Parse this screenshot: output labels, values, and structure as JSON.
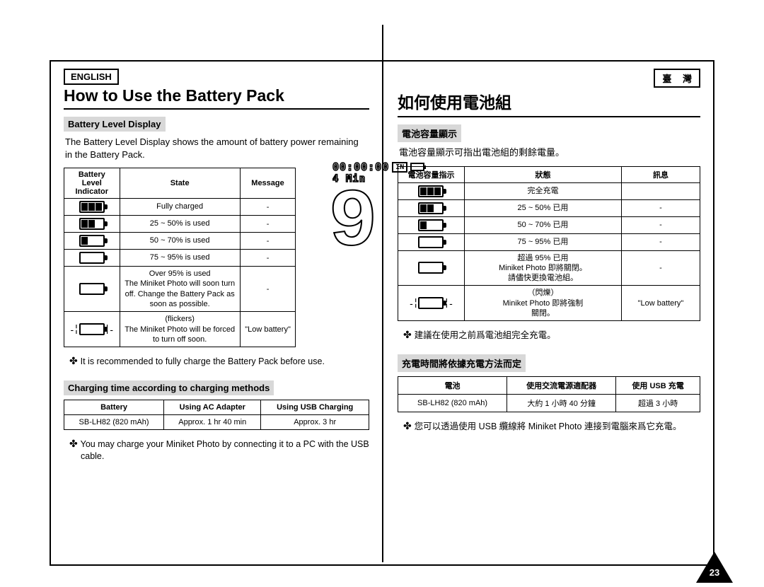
{
  "page_number": "23",
  "left": {
    "lang_label": "ENGLISH",
    "title": "How to Use the Battery Pack",
    "section1_header": "Battery Level Display",
    "intro": "The Battery Level Display shows the amount of battery power remaining in the Battery Pack.",
    "table_headers": {
      "col1": "Battery Level Indicator",
      "col2": "State",
      "col3": "Message"
    },
    "rows": [
      {
        "bars": 3,
        "state": "Fully charged",
        "msg": "-"
      },
      {
        "bars": 2,
        "state": "25 ~ 50% is used",
        "msg": "-"
      },
      {
        "bars": 1,
        "state": "50 ~ 70% is used",
        "msg": "-"
      },
      {
        "bars": 0,
        "state": "75 ~ 95% is used",
        "msg": "-"
      },
      {
        "bars": 0,
        "state": "Over 95% is used\nThe Miniket Photo will soon turn off. Change the Battery Pack as soon as possible.",
        "msg": "-"
      },
      {
        "bars": 0,
        "flicker": true,
        "state": "(flickers)\nThe Miniket Photo will be forced to turn off soon.",
        "msg": "\"Low battery\""
      }
    ],
    "bullet1": "It is recommended to fully charge the Battery Pack before use.",
    "section2_header": "Charging time according to charging methods",
    "charge_headers": {
      "c1": "Battery",
      "c2": "Using AC Adapter",
      "c3": "Using USB Charging"
    },
    "charge_row": {
      "c1": "SB-LH82 (820 mAh)",
      "c2": "Approx. 1 hr 40 min",
      "c3": "Approx. 3 hr"
    },
    "bullet2": "You may charge your Miniket Photo by connecting it to a PC with the USB cable."
  },
  "right": {
    "lang_label": "臺 灣",
    "title": "如何使用電池組",
    "section1_header": "電池容量顯示",
    "intro": "電池容量顯示可指出電池組的剩餘電量。",
    "table_headers": {
      "col1": "電池容量指示",
      "col2": "狀態",
      "col3": "訊息"
    },
    "rows": [
      {
        "bars": 3,
        "state": "完全充電",
        "msg": ""
      },
      {
        "bars": 2,
        "state": "25 ~ 50% 已用",
        "msg": "-"
      },
      {
        "bars": 1,
        "state": "50 ~ 70% 已用",
        "msg": "-"
      },
      {
        "bars": 0,
        "state": "75 ~ 95% 已用",
        "msg": "-"
      },
      {
        "bars": 0,
        "state": "超過 95% 已用\nMiniket Photo 即將關閉。\n請儘快更換電池組。",
        "msg": "-"
      },
      {
        "bars": 0,
        "flicker": true,
        "state": "（閃爍）\nMiniket Photo 即將強制\n關閉。",
        "msg": "\"Low battery\""
      }
    ],
    "bullet1": "建議在使用之前爲電池組完全充電。",
    "section2_header": "充電時間將依據充電方法而定",
    "charge_headers": {
      "c1": "電池",
      "c2": "使用交流電源適配器",
      "c3": "使用 USB 充電"
    },
    "charge_row": {
      "c1": "SB-LH82 (820 mAh)",
      "c2": "大約 1 小時 40 分鐘",
      "c3": "超過 3 小時"
    },
    "bullet2": "您可以透過使用 USB 纜線將 Miniket Photo 連接到電腦來爲它充電。"
  },
  "lcd": {
    "time": "00:00:00",
    "min": "4 Min",
    "in": "IN"
  }
}
